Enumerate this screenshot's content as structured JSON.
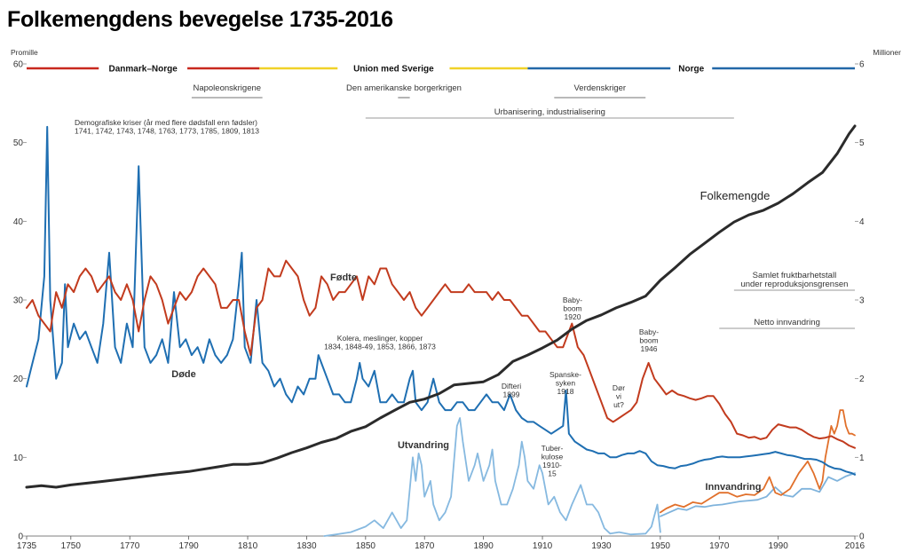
{
  "chart_data": {
    "type": "line",
    "title": "Folkemengdens bevegelse 1735-2016",
    "y_left_label": "Promille",
    "y_right_label": "Millioner",
    "xlim": [
      1735,
      2016
    ],
    "ylim_left": [
      0,
      60
    ],
    "ylim_right": [
      0,
      6
    ],
    "x_ticks": [
      1735,
      1750,
      1770,
      1790,
      1810,
      1830,
      1850,
      1870,
      1890,
      1910,
      1930,
      1950,
      1970,
      1990,
      2016
    ],
    "y_left_ticks": [
      0,
      10,
      20,
      30,
      40,
      50,
      60
    ],
    "y_right_ticks": [
      0,
      1,
      2,
      3,
      4,
      5,
      6
    ],
    "eras": [
      {
        "label": "Danmark–Norge",
        "start": 1735,
        "end": 1814,
        "color": "#c8281e"
      },
      {
        "label": "Union med Sverige",
        "start": 1814,
        "end": 1905,
        "color": "#f0d228"
      },
      {
        "label": "Norge",
        "start": 1905,
        "end": 2016,
        "color": "#2368a8"
      }
    ],
    "periods": [
      {
        "label": "Napoleonskrigene",
        "start": 1791,
        "end": 1815,
        "bracket": true
      },
      {
        "label": "Den amerikanske borgerkrigen",
        "start": 1861,
        "end": 1865,
        "bracket": true
      },
      {
        "label": "Verdenskriger",
        "start": 1914,
        "end": 1945,
        "bracket": true
      },
      {
        "label": "Urbanisering, industrialisering",
        "start": 1850,
        "end": 1975,
        "bracket": false
      },
      {
        "label": "Samlet fruktbarhetstall\nunder reproduksjonsgrensen",
        "start": 1975,
        "end": 2016,
        "bracket": false
      },
      {
        "label": "Netto innvandring",
        "start": 1970,
        "end": 2016,
        "bracket": false
      }
    ],
    "annotations": [
      {
        "text": "Demografiske kriser (år med flere dødsfall enn fødsler)\n1741, 1742, 1743, 1748, 1763, 1773, 1785, 1809, 1813",
        "x": 1750,
        "y": 51.5
      },
      {
        "text": "Kolera, meslinger, kopper\n1834, 1848-49, 1853, 1866, 1873",
        "x": 1855,
        "y": 24.8
      },
      {
        "text": "Difteri\n1899",
        "x": 1899,
        "y": 18.8
      },
      {
        "text": "Spanske-\nsyken\n1918",
        "x": 1918,
        "y": 20.0
      },
      {
        "text": "Baby-\nboom\n1920",
        "x": 1920,
        "y": 30.2
      },
      {
        "text": "Dør\nvi\nut?",
        "x": 1937,
        "y": 18.2
      },
      {
        "text": "Baby-\nboom\n1946",
        "x": 1946,
        "y": 25.6
      },
      {
        "text": "Tuber-\nkulose\n1910-\n15",
        "x": 1912,
        "y": 10.0
      }
    ],
    "series": [
      {
        "name": "Fødte",
        "label": "Fødte",
        "axis": "left",
        "color": "#c23b1e",
        "x": [
          1735,
          1737,
          1739,
          1741,
          1743,
          1745,
          1747,
          1749,
          1751,
          1753,
          1755,
          1757,
          1759,
          1761,
          1763,
          1765,
          1767,
          1769,
          1771,
          1773,
          1775,
          1777,
          1779,
          1781,
          1783,
          1785,
          1787,
          1789,
          1791,
          1793,
          1795,
          1797,
          1799,
          1801,
          1803,
          1805,
          1807,
          1809,
          1811,
          1813,
          1815,
          1817,
          1819,
          1821,
          1823,
          1825,
          1827,
          1829,
          1831,
          1833,
          1835,
          1837,
          1839,
          1841,
          1843,
          1845,
          1847,
          1849,
          1851,
          1853,
          1855,
          1857,
          1859,
          1861,
          1863,
          1865,
          1867,
          1869,
          1871,
          1873,
          1875,
          1877,
          1879,
          1881,
          1883,
          1885,
          1887,
          1889,
          1891,
          1893,
          1895,
          1897,
          1899,
          1901,
          1903,
          1905,
          1907,
          1909,
          1911,
          1913,
          1915,
          1917,
          1919,
          1920,
          1922,
          1924,
          1926,
          1928,
          1930,
          1932,
          1934,
          1936,
          1938,
          1940,
          1942,
          1944,
          1946,
          1948,
          1950,
          1952,
          1954,
          1956,
          1958,
          1960,
          1962,
          1964,
          1966,
          1968,
          1970,
          1972,
          1974,
          1976,
          1978,
          1980,
          1982,
          1984,
          1986,
          1988,
          1990,
          1992,
          1994,
          1996,
          1998,
          2000,
          2002,
          2004,
          2006,
          2008,
          2010,
          2012,
          2014,
          2016
        ],
        "values": [
          29,
          30,
          28,
          27,
          26,
          31,
          29,
          32,
          31,
          33,
          34,
          33,
          31,
          32,
          33,
          31,
          30,
          32,
          30,
          26,
          30,
          33,
          32,
          30,
          27,
          29,
          31,
          30,
          31,
          33,
          34,
          33,
          32,
          29,
          29,
          30,
          30,
          26,
          23,
          29,
          30,
          34,
          33,
          33,
          35,
          34,
          33,
          30,
          28,
          29,
          33,
          32,
          30,
          31,
          31,
          32,
          33,
          30,
          33,
          32,
          34,
          34,
          32,
          31,
          30,
          31,
          29,
          28,
          29,
          30,
          31,
          32,
          31,
          31,
          31,
          32,
          31,
          31,
          31,
          30,
          31,
          30,
          30,
          29,
          28,
          28,
          27,
          26,
          26,
          25,
          24,
          24,
          26,
          27,
          24,
          23,
          21,
          19,
          17,
          15,
          14.5,
          15,
          15.5,
          16,
          17,
          20,
          22,
          20,
          19,
          18,
          18.5,
          18,
          17.8,
          17.5,
          17.3,
          17.5,
          17.8,
          17.8,
          16.8,
          15.5,
          14.5,
          13,
          12.8,
          12.5,
          12.6,
          12.3,
          12.5,
          13.5,
          14.2,
          14,
          13.8,
          13.8,
          13.5,
          13,
          12.6,
          12.4,
          12.5,
          12.7,
          12.3,
          12,
          11.5,
          11.2
        ]
      },
      {
        "name": "Døde",
        "label": "Døde",
        "axis": "left",
        "color": "#1f6fb2",
        "x": [
          1735,
          1737,
          1739,
          1741,
          1742,
          1743,
          1745,
          1747,
          1748,
          1749,
          1751,
          1753,
          1755,
          1757,
          1759,
          1761,
          1763,
          1765,
          1767,
          1769,
          1771,
          1773,
          1775,
          1777,
          1779,
          1781,
          1783,
          1785,
          1787,
          1789,
          1791,
          1793,
          1795,
          1797,
          1799,
          1801,
          1803,
          1805,
          1807,
          1808,
          1809,
          1811,
          1813,
          1815,
          1817,
          1819,
          1821,
          1823,
          1825,
          1827,
          1829,
          1831,
          1833,
          1834,
          1835,
          1837,
          1839,
          1841,
          1843,
          1845,
          1847,
          1848,
          1849,
          1851,
          1853,
          1855,
          1857,
          1859,
          1861,
          1863,
          1865,
          1866,
          1867,
          1869,
          1871,
          1873,
          1875,
          1877,
          1879,
          1881,
          1883,
          1885,
          1887,
          1889,
          1891,
          1893,
          1895,
          1897,
          1899,
          1901,
          1903,
          1905,
          1907,
          1909,
          1911,
          1913,
          1915,
          1917,
          1918,
          1919,
          1921,
          1923,
          1925,
          1927,
          1929,
          1931,
          1933,
          1935,
          1937,
          1939,
          1941,
          1943,
          1945,
          1947,
          1949,
          1951,
          1953,
          1955,
          1957,
          1959,
          1961,
          1963,
          1965,
          1967,
          1969,
          1971,
          1973,
          1975,
          1977,
          1979,
          1981,
          1983,
          1985,
          1987,
          1989,
          1991,
          1993,
          1995,
          1997,
          1999,
          2001,
          2003,
          2005,
          2007,
          2009,
          2011,
          2013,
          2015,
          2016
        ],
        "values": [
          19,
          22,
          25,
          33,
          52,
          30,
          20,
          22,
          32,
          24,
          27,
          25,
          26,
          24,
          22,
          27,
          36,
          24,
          22,
          27,
          24,
          47,
          24,
          22,
          23,
          25,
          22,
          31,
          24,
          25,
          23,
          24,
          22,
          25,
          23,
          22,
          23,
          25,
          32,
          36,
          24,
          22,
          30,
          22,
          21,
          19,
          20,
          18,
          17,
          19,
          18,
          20,
          20,
          23,
          22,
          20,
          18,
          18,
          17,
          17,
          20,
          22,
          20,
          19,
          21,
          17,
          17,
          18,
          17,
          17,
          20,
          21,
          17,
          16,
          17,
          20,
          17,
          16,
          16,
          17,
          17,
          16,
          16,
          17,
          18,
          17,
          17,
          16,
          18,
          16,
          15,
          14.5,
          14.5,
          14,
          13.5,
          13,
          13.5,
          14,
          18.5,
          13,
          12,
          11.5,
          11,
          10.8,
          10.5,
          10.5,
          10,
          10,
          10.3,
          10.5,
          10.5,
          10.8,
          10.5,
          9.5,
          9,
          8.9,
          8.7,
          8.6,
          8.9,
          9,
          9.2,
          9.5,
          9.7,
          9.8,
          10,
          10.1,
          10,
          10,
          10,
          10.1,
          10.2,
          10.3,
          10.4,
          10.5,
          10.7,
          10.5,
          10.3,
          10.2,
          10,
          9.8,
          9.8,
          9.7,
          9.4,
          8.9,
          8.6,
          8.5,
          8.2,
          8,
          7.8
        ]
      },
      {
        "name": "Utvandring",
        "label": "Utvandring",
        "axis": "left",
        "color": "#86b9e0",
        "x": [
          1836,
          1840,
          1845,
          1850,
          1853,
          1856,
          1859,
          1862,
          1864,
          1866,
          1867,
          1868,
          1869,
          1870,
          1871,
          1872,
          1873,
          1875,
          1877,
          1879,
          1880,
          1881,
          1882,
          1883,
          1885,
          1887,
          1888,
          1890,
          1892,
          1893,
          1894,
          1896,
          1898,
          1900,
          1902,
          1903,
          1904,
          1905,
          1907,
          1909,
          1910,
          1912,
          1914,
          1916,
          1918,
          1920,
          1923,
          1925,
          1927,
          1929,
          1931,
          1933,
          1936,
          1940,
          1945,
          1947,
          1949,
          1950
        ],
        "values": [
          0,
          0.2,
          0.5,
          1.2,
          2,
          1,
          3,
          1,
          2,
          10,
          7,
          10.5,
          9,
          5,
          6,
          7,
          4,
          2,
          3,
          5,
          9.5,
          14,
          15,
          12,
          7,
          9,
          10.5,
          7,
          9,
          11,
          7,
          4,
          4,
          6,
          9,
          12,
          10,
          7,
          6,
          9,
          8,
          4,
          5,
          3,
          2,
          4,
          6.5,
          4,
          4,
          3,
          1,
          0.3,
          0.5,
          0.2,
          0.3,
          1.2,
          4,
          0.5
        ]
      },
      {
        "name": "Innvandring",
        "label": "Innvandring",
        "axis": "left",
        "color": "#7fb3dc",
        "x": [
          1950,
          1953,
          1956,
          1959,
          1962,
          1965,
          1968,
          1971,
          1974,
          1977,
          1980,
          1983,
          1986,
          1989,
          1992,
          1995,
          1998,
          2001,
          2004,
          2007,
          2010,
          2013,
          2016
        ],
        "values": [
          2.5,
          3,
          3.5,
          3.3,
          3.8,
          3.7,
          3.9,
          4,
          4.2,
          4.4,
          4.5,
          4.6,
          5,
          6.2,
          5.2,
          5,
          6,
          6,
          5.6,
          7.5,
          7,
          7.6,
          8
        ]
      },
      {
        "name": "Netto innvandring",
        "label": "",
        "axis": "left",
        "color": "#e1702b",
        "x": [
          1950,
          1952,
          1955,
          1958,
          1961,
          1964,
          1967,
          1970,
          1973,
          1976,
          1979,
          1982,
          1985,
          1987,
          1989,
          1991,
          1994,
          1997,
          2000,
          2002,
          2004,
          2005,
          2006,
          2007,
          2008,
          2009,
          2010,
          2011,
          2012,
          2013,
          2014,
          2015,
          2016
        ],
        "values": [
          3,
          3.5,
          4,
          3.7,
          4.3,
          4.1,
          4.8,
          5.5,
          5.5,
          5,
          5.3,
          5.2,
          6,
          7.5,
          5.5,
          5.2,
          6,
          8,
          9.5,
          8,
          6,
          7,
          10,
          12,
          14,
          13,
          14,
          16,
          16,
          14,
          13,
          13,
          12.8
        ]
      },
      {
        "name": "Folkemengde",
        "label": "Folkemengde",
        "axis": "right",
        "color": "#2b2b2b",
        "x": [
          1735,
          1740,
          1745,
          1750,
          1760,
          1769,
          1780,
          1790,
          1800,
          1805,
          1810,
          1815,
          1820,
          1825,
          1830,
          1835,
          1840,
          1845,
          1850,
          1855,
          1860,
          1865,
          1870,
          1875,
          1880,
          1885,
          1890,
          1895,
          1900,
          1905,
          1910,
          1915,
          1920,
          1925,
          1930,
          1935,
          1940,
          1945,
          1950,
          1955,
          1960,
          1965,
          1970,
          1975,
          1980,
          1985,
          1990,
          1995,
          2000,
          2005,
          2010,
          2014,
          2016
        ],
        "values": [
          0.62,
          0.64,
          0.62,
          0.65,
          0.69,
          0.73,
          0.78,
          0.82,
          0.88,
          0.91,
          0.91,
          0.93,
          0.99,
          1.06,
          1.12,
          1.19,
          1.24,
          1.33,
          1.39,
          1.5,
          1.6,
          1.7,
          1.74,
          1.81,
          1.92,
          1.94,
          1.96,
          2.05,
          2.22,
          2.3,
          2.39,
          2.49,
          2.63,
          2.74,
          2.81,
          2.9,
          2.97,
          3.05,
          3.25,
          3.41,
          3.58,
          3.72,
          3.86,
          3.99,
          4.08,
          4.14,
          4.23,
          4.35,
          4.49,
          4.62,
          4.86,
          5.11,
          5.21
        ]
      }
    ]
  }
}
